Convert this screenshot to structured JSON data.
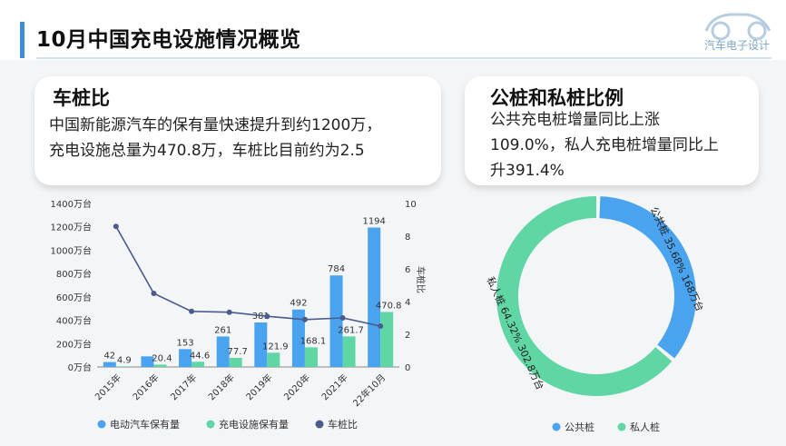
{
  "header": {
    "title": "10月中国充电设施情况概览",
    "logo_text": "汽车电子设计"
  },
  "card_left": {
    "title": "车桩比",
    "lines": [
      "中国新能源汽车的保有量快速提升到约1200万，",
      "充电设施总量为470.8万，车桩比目前约为2.5"
    ]
  },
  "card_right": {
    "title": "公桩和私桩比例",
    "lines": [
      "公共充电桩增量同比上涨",
      "109.0%，私人充电桩增量同比上",
      "升391.4%"
    ]
  },
  "colors": {
    "accent": "#3a8fd8",
    "ev_bar": "#4aa3ee",
    "charger_bar": "#5fd6a4",
    "ratio_line": "#4a5b8c",
    "public": "#4aa3ee",
    "private": "#5fd6a4"
  },
  "chart_data": [
    {
      "type": "bar",
      "categories": [
        "2015年",
        "2016年",
        "2017年",
        "2018年",
        "2019年",
        "2020年",
        "2021年",
        "22年10月"
      ],
      "series": [
        {
          "name": "电动汽车保有量",
          "values": [
            42,
            91,
            153,
            261,
            381,
            492,
            784,
            1194
          ],
          "labels": [
            "42",
            "",
            "153",
            "261",
            "381",
            "492",
            "784",
            "1194"
          ]
        },
        {
          "name": "充电设施保有量",
          "values": [
            4.9,
            20.4,
            44.6,
            77.7,
            121.9,
            168.1,
            261.7,
            470.8
          ],
          "labels": [
            "4.9",
            "20.4",
            "44.6",
            "77.7",
            "121.9",
            "168.1",
            "261.7",
            "470.8"
          ]
        },
        {
          "name": "车桩比",
          "values": [
            8.6,
            4.5,
            3.4,
            3.35,
            3.1,
            2.9,
            3.0,
            2.5
          ],
          "axis": "right",
          "style": "line"
        }
      ],
      "ylim": [
        0,
        1400
      ],
      "yticks": [
        "0万台",
        "200万台",
        "400万台",
        "600万台",
        "800万台",
        "1000万台",
        "1200万台",
        "1400万台"
      ],
      "y2lim": [
        0,
        10
      ],
      "y2ticks": [
        "0",
        "2",
        "4",
        "6",
        "8",
        "10"
      ],
      "y2label": "车桩比",
      "legend": "bottom"
    },
    {
      "type": "pie",
      "donut": true,
      "slices": [
        {
          "name": "公共桩",
          "percent": 35.68,
          "value": 168,
          "label": "公共桩  35.68%  168万台"
        },
        {
          "name": "私人桩",
          "percent": 64.32,
          "value": 302.8,
          "label": "私人桩  64.32%  302.8万台"
        }
      ],
      "legend": "bottom"
    }
  ]
}
